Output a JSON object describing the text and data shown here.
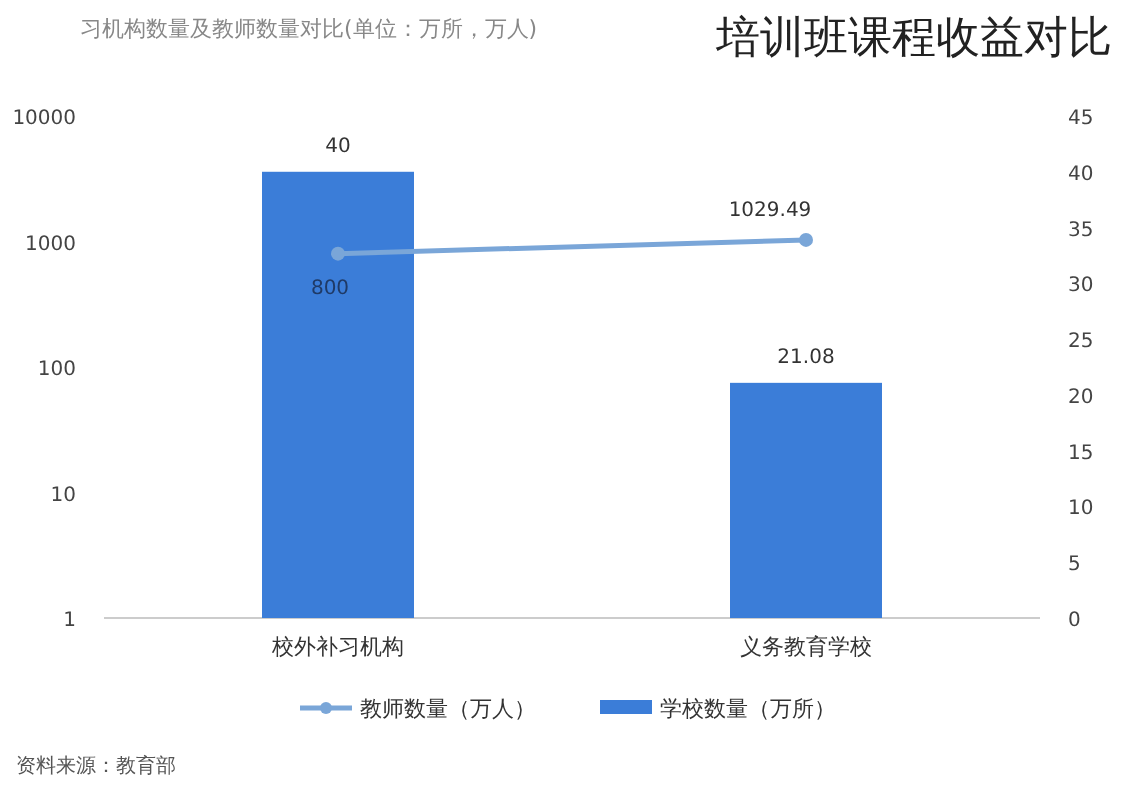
{
  "chart_data": {
    "type": "bar",
    "title": "培训班课程收益对比",
    "subtitle": "习机构数量及教师数量对比(单位：万所，万人)",
    "categories": [
      "校外补习机构",
      "义务教育学校"
    ],
    "series": [
      {
        "name": "学校数量（万所）",
        "color": "#3b7dd8",
        "values": [
          40,
          21.08
        ],
        "axis": "y2"
      },
      {
        "name": "教师数量（万人）",
        "type": "line",
        "color": "#7aa6d8",
        "values": [
          800,
          1029.49
        ]
      }
    ],
    "log": "y",
    "ylim": [
      1,
      10000
    ],
    "yticks": [
      1,
      10,
      100,
      1000,
      10000
    ],
    "y2lim": [
      0,
      45
    ],
    "y2ticks": [
      0,
      5,
      10,
      15,
      20,
      25,
      30,
      35,
      40,
      45
    ],
    "marker": "circle",
    "data_labels": true,
    "legend": "bottom",
    "grid": false,
    "annotations": [
      "资料来源：教育部"
    ]
  }
}
